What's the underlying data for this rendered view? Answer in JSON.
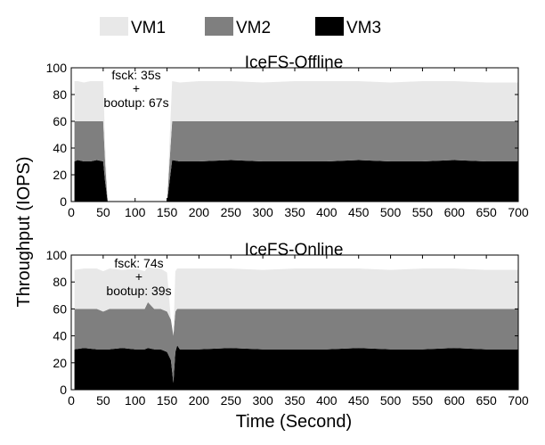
{
  "legend": [
    {
      "label": "VM1",
      "color": "#e8e8e8"
    },
    {
      "label": "VM2",
      "color": "#7f7f7f"
    },
    {
      "label": "VM3",
      "color": "#000000"
    }
  ],
  "ylabel": "Throughput (IOPS)",
  "xlabel": "Time (Second)",
  "chart_data": [
    {
      "type": "area",
      "stacked": true,
      "title": "IceFS-Offline",
      "xlim": [
        0,
        700
      ],
      "ylim": [
        0,
        100
      ],
      "xticks": [
        0,
        50,
        100,
        150,
        200,
        250,
        300,
        350,
        400,
        450,
        500,
        550,
        600,
        650,
        700
      ],
      "yticks": [
        0,
        20,
        40,
        60,
        80,
        100
      ],
      "x": [
        5,
        10,
        20,
        30,
        40,
        50,
        53,
        57,
        150,
        154,
        158,
        170,
        200,
        250,
        300,
        350,
        400,
        450,
        500,
        550,
        600,
        650,
        700
      ],
      "series": [
        {
          "name": "VM3",
          "color": "#000000",
          "values": [
            30,
            31,
            30,
            30,
            31,
            30,
            15,
            0,
            0,
            15,
            31,
            30,
            30,
            31,
            30,
            30,
            30,
            31,
            30,
            30,
            31,
            30,
            30
          ]
        },
        {
          "name": "VM2",
          "color": "#7f7f7f",
          "values": [
            30,
            29,
            30,
            30,
            29,
            30,
            15,
            0,
            0,
            15,
            29,
            30,
            30,
            29,
            30,
            30,
            30,
            29,
            30,
            30,
            29,
            30,
            30
          ]
        },
        {
          "name": "VM1",
          "color": "#e8e8e8",
          "values": [
            30,
            30,
            29,
            30,
            30,
            30,
            15,
            0,
            0,
            15,
            30,
            29,
            30,
            30,
            29,
            30,
            30,
            30,
            29,
            30,
            30,
            29,
            29
          ]
        }
      ],
      "annotation": [
        "fsck: 35s",
        "+",
        "bootup: 67s"
      ]
    },
    {
      "type": "area",
      "stacked": true,
      "title": "IceFS-Online",
      "xlim": [
        0,
        700
      ],
      "ylim": [
        0,
        100
      ],
      "xticks": [
        0,
        50,
        100,
        150,
        200,
        250,
        300,
        350,
        400,
        450,
        500,
        550,
        600,
        650,
        700
      ],
      "yticks": [
        0,
        20,
        40,
        60,
        80,
        100
      ],
      "x": [
        5,
        20,
        40,
        50,
        60,
        80,
        100,
        115,
        120,
        130,
        140,
        150,
        156,
        160,
        163,
        166,
        170,
        200,
        250,
        300,
        350,
        400,
        450,
        500,
        550,
        600,
        650,
        700
      ],
      "series": [
        {
          "name": "VM3",
          "color": "#000000",
          "values": [
            30,
            31,
            30,
            30,
            30,
            31,
            30,
            30,
            31,
            30,
            30,
            28,
            22,
            5,
            28,
            33,
            30,
            30,
            31,
            30,
            30,
            30,
            31,
            30,
            30,
            31,
            30,
            30
          ]
        },
        {
          "name": "VM2",
          "color": "#7f7f7f",
          "values": [
            30,
            29,
            30,
            28,
            30,
            29,
            30,
            30,
            34,
            30,
            30,
            30,
            30,
            35,
            30,
            27,
            30,
            30,
            29,
            30,
            30,
            30,
            29,
            30,
            30,
            29,
            30,
            30
          ]
        },
        {
          "name": "VM1",
          "color": "#e8e8e8",
          "values": [
            29,
            30,
            30,
            30,
            30,
            29,
            30,
            28,
            26,
            30,
            30,
            29,
            0,
            0,
            30,
            30,
            30,
            30,
            30,
            29,
            30,
            30,
            30,
            29,
            30,
            30,
            29,
            29
          ]
        }
      ],
      "annotation": [
        "fsck: 74s",
        "+",
        "bootup: 39s"
      ]
    }
  ]
}
